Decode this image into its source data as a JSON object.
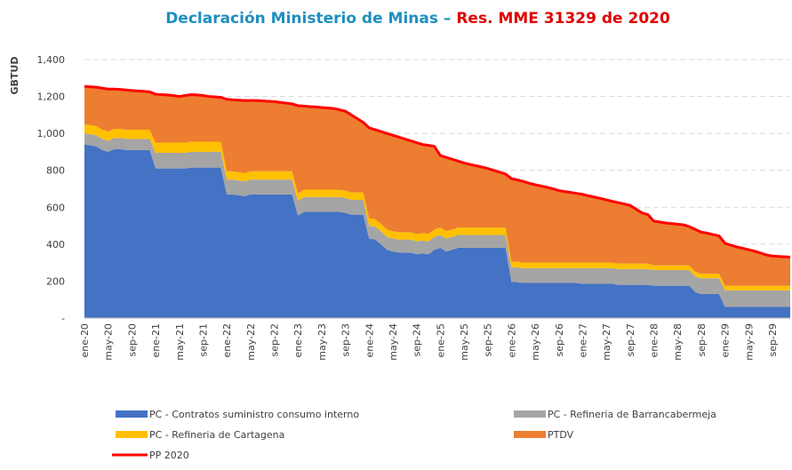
{
  "chart_data": {
    "type": "stacked_area",
    "title": "Declaración Ministerio de Minas – ",
    "title_highlight": "Res. MME 31329 de 2020",
    "y_label": "GBTUD",
    "categories": [
      "ene-20",
      null,
      null,
      null,
      "may-20",
      null,
      null,
      null,
      "sep-20",
      null,
      null,
      null,
      "ene-21",
      null,
      null,
      null,
      "may-21",
      null,
      null,
      null,
      "sep-21",
      null,
      null,
      null,
      "ene-22",
      null,
      null,
      null,
      "may-22",
      null,
      null,
      null,
      "sep-22",
      null,
      null,
      null,
      "ene-23",
      null,
      null,
      null,
      "may-23",
      null,
      null,
      null,
      "sep-23",
      null,
      null,
      null,
      "ene-24",
      null,
      null,
      null,
      "may-24",
      null,
      null,
      null,
      "sep-24",
      null,
      null,
      null,
      "ene-25",
      null,
      null,
      null,
      "may-25",
      null,
      null,
      null,
      "sep-25",
      null,
      null,
      null,
      "ene-26",
      null,
      null,
      null,
      "may-26",
      null,
      null,
      null,
      "sep-26",
      null,
      null,
      null,
      "ene-27",
      null,
      null,
      null,
      "may-27",
      null,
      null,
      null,
      "sep-27",
      null,
      null,
      null,
      "ene-28",
      null,
      null,
      null,
      "may-28",
      null,
      null,
      null,
      "sep-28",
      null,
      null,
      null,
      "ene-29",
      null,
      null,
      null,
      "may-29",
      null,
      null,
      null,
      "sep-29",
      null,
      null,
      null
    ],
    "series": [
      {
        "name": "PC - Contratos suministro consumo interno",
        "color": "#4472c4",
        "type": "area",
        "values": [
          940,
          935,
          930,
          910,
          900,
          915,
          915,
          910,
          910,
          910,
          910,
          910,
          810,
          810,
          810,
          810,
          810,
          810,
          815,
          815,
          815,
          815,
          815,
          815,
          670,
          670,
          665,
          660,
          670,
          670,
          670,
          670,
          670,
          670,
          670,
          670,
          555,
          575,
          575,
          575,
          575,
          575,
          575,
          575,
          570,
          560,
          560,
          560,
          430,
          425,
          400,
          370,
          360,
          355,
          355,
          355,
          345,
          350,
          345,
          370,
          380,
          360,
          370,
          380,
          380,
          380,
          380,
          380,
          380,
          380,
          380,
          380,
          195,
          195,
          190,
          190,
          190,
          190,
          190,
          190,
          190,
          190,
          190,
          190,
          185,
          185,
          185,
          185,
          185,
          185,
          180,
          180,
          180,
          180,
          180,
          180,
          175,
          175,
          175,
          175,
          175,
          175,
          175,
          140,
          130,
          130,
          130,
          130,
          60,
          60,
          60,
          60,
          60,
          60,
          60,
          60,
          60,
          60,
          60,
          60
        ]
      },
      {
        "name": "PC - Refineria de Barrancabermeja",
        "color": "#a5a5a5",
        "type": "area",
        "values": [
          60,
          60,
          60,
          60,
          60,
          60,
          60,
          60,
          60,
          60,
          60,
          60,
          85,
          85,
          85,
          85,
          85,
          85,
          85,
          85,
          85,
          85,
          85,
          85,
          80,
          80,
          80,
          80,
          80,
          80,
          80,
          80,
          80,
          80,
          80,
          80,
          80,
          80,
          80,
          80,
          80,
          80,
          80,
          80,
          80,
          80,
          80,
          80,
          70,
          70,
          70,
          70,
          70,
          70,
          70,
          70,
          70,
          70,
          70,
          70,
          70,
          70,
          70,
          70,
          70,
          70,
          70,
          70,
          70,
          70,
          70,
          70,
          80,
          80,
          80,
          80,
          80,
          80,
          80,
          80,
          80,
          80,
          80,
          80,
          85,
          85,
          85,
          85,
          85,
          85,
          85,
          85,
          85,
          85,
          85,
          85,
          85,
          85,
          85,
          85,
          85,
          85,
          85,
          85,
          85,
          85,
          85,
          85,
          90,
          90,
          90,
          90,
          90,
          90,
          90,
          90,
          90,
          90,
          90,
          90
        ]
      },
      {
        "name": "PC - Refineria de Cartagena",
        "color": "#ffc000",
        "type": "area",
        "values": [
          50,
          50,
          50,
          50,
          50,
          50,
          50,
          50,
          50,
          50,
          50,
          50,
          55,
          55,
          55,
          55,
          55,
          55,
          55,
          55,
          55,
          55,
          55,
          55,
          45,
          45,
          45,
          45,
          45,
          45,
          45,
          45,
          45,
          45,
          45,
          45,
          40,
          40,
          40,
          40,
          40,
          40,
          40,
          40,
          40,
          40,
          40,
          40,
          40,
          40,
          40,
          40,
          40,
          40,
          40,
          40,
          40,
          40,
          40,
          40,
          40,
          40,
          40,
          40,
          40,
          40,
          40,
          40,
          40,
          40,
          40,
          40,
          30,
          30,
          30,
          30,
          30,
          30,
          30,
          30,
          30,
          30,
          30,
          30,
          30,
          30,
          30,
          30,
          30,
          30,
          30,
          30,
          30,
          30,
          30,
          30,
          25,
          25,
          25,
          25,
          25,
          25,
          25,
          25,
          25,
          25,
          25,
          25,
          25,
          25,
          25,
          25,
          25,
          25,
          25,
          25,
          25,
          25,
          25,
          25
        ]
      },
      {
        "name": "PTDV",
        "color": "#ed7d31",
        "type": "area",
        "values": [
          205,
          207,
          210,
          225,
          230,
          215,
          213,
          215,
          212,
          210,
          208,
          205,
          262,
          260,
          258,
          255,
          250,
          255,
          255,
          253,
          250,
          245,
          243,
          240,
          390,
          387,
          390,
          393,
          383,
          383,
          381,
          379,
          377,
          373,
          369,
          365,
          475,
          453,
          450,
          448,
          445,
          443,
          440,
          433,
          430,
          420,
          400,
          380,
          490,
          485,
          500,
          520,
          520,
          515,
          505,
          495,
          495,
          480,
          480,
          450,
          390,
          400,
          380,
          360,
          350,
          342,
          335,
          328,
          320,
          310,
          300,
          290,
          450,
          443,
          440,
          430,
          422,
          415,
          408,
          400,
          390,
          385,
          380,
          375,
          370,
          362,
          355,
          348,
          340,
          332,
          330,
          323,
          315,
          295,
          275,
          265,
          240,
          235,
          230,
          227,
          223,
          220,
          210,
          230,
          225,
          220,
          212,
          205,
          230,
          220,
          210,
          203,
          195,
          187,
          177,
          167,
          161,
          159,
          157,
          155
        ]
      },
      {
        "name": "PP 2020",
        "color": "#ff0000",
        "type": "line",
        "values": [
          1255,
          1252,
          1250,
          1245,
          1240,
          1240,
          1238,
          1235,
          1232,
          1230,
          1228,
          1225,
          1212,
          1210,
          1208,
          1205,
          1200,
          1205,
          1210,
          1208,
          1205,
          1200,
          1198,
          1195,
          1185,
          1182,
          1180,
          1178,
          1178,
          1178,
          1176,
          1174,
          1172,
          1168,
          1164,
          1160,
          1150,
          1148,
          1145,
          1143,
          1140,
          1138,
          1135,
          1128,
          1120,
          1100,
          1080,
          1060,
          1030,
          1020,
          1010,
          1000,
          990,
          980,
          970,
          960,
          950,
          940,
          935,
          930,
          880,
          870,
          860,
          850,
          840,
          832,
          825,
          818,
          810,
          800,
          790,
          780,
          755,
          748,
          740,
          730,
          722,
          715,
          708,
          700,
          690,
          685,
          680,
          675,
          670,
          662,
          655,
          648,
          640,
          632,
          625,
          618,
          610,
          590,
          570,
          560,
          525,
          520,
          515,
          512,
          508,
          505,
          495,
          480,
          465,
          460,
          452,
          445,
          405,
          395,
          385,
          378,
          370,
          362,
          352,
          342,
          336,
          334,
          332,
          330
        ]
      }
    ],
    "ylim": [
      0,
      1400
    ],
    "yticks": [
      {
        "value": 0,
        "label": "-"
      },
      200,
      400,
      600,
      800,
      {
        "value": 1000,
        "label": "1,000"
      },
      {
        "value": 1200,
        "label": "1,200"
      },
      {
        "value": 1400,
        "label": "1,400"
      }
    ],
    "grid": true
  }
}
